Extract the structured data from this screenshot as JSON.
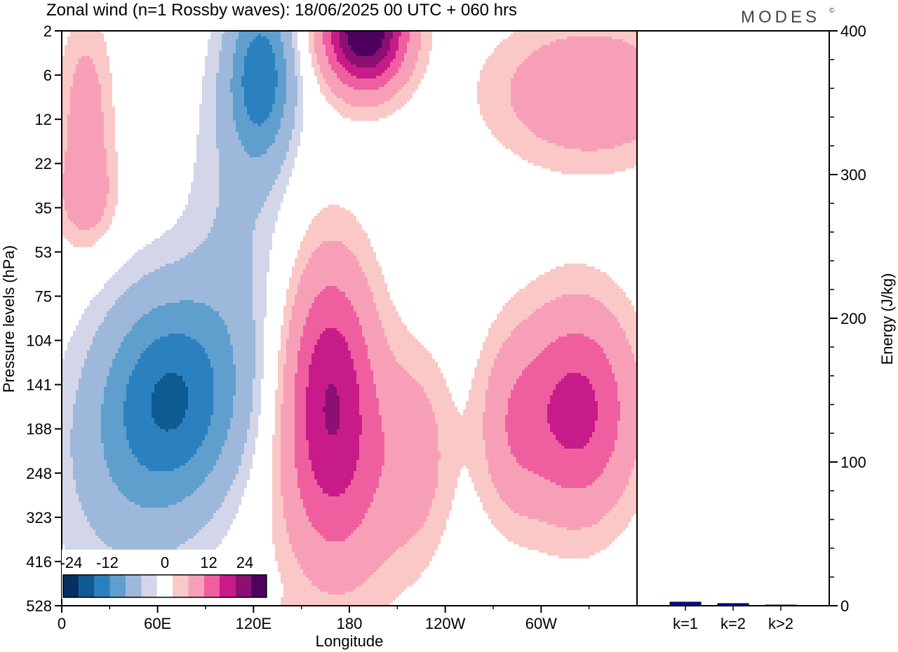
{
  "title": "Zonal wind (n=1 Rossby waves):  18/06/2025  00 UTC  + 060 hrs",
  "brand": "MODES",
  "brand_mark": "©",
  "colors": {
    "levels": [
      "#053061",
      "#0e5a92",
      "#2b81bf",
      "#5f9fcd",
      "#9db8da",
      "#d3d6e8",
      "#ffffff",
      "#fac8c6",
      "#f89fb8",
      "#ef5fa0",
      "#c81b8a",
      "#8c0f73",
      "#4d0060"
    ],
    "bar": "#0a0a96"
  },
  "chart_data": [
    {
      "type": "heatmap",
      "title": "Zonal wind (n=1 Rossby waves):  18/06/2025  00 UTC  + 060 hrs",
      "xlabel": "Longitude",
      "ylabel": "Pressure levels (hPa)",
      "x_ticks": [
        "0",
        "60E",
        "120E",
        "180",
        "120W",
        "60W"
      ],
      "x_tick_values": [
        0,
        60,
        120,
        180,
        240,
        300
      ],
      "xlim": [
        0,
        360
      ],
      "y_ticks": [
        "2",
        "6",
        "12",
        "22",
        "35",
        "53",
        "75",
        "104",
        "141",
        "188",
        "248",
        "323",
        "416",
        "528"
      ],
      "y_scale": "log (pressure, increasing downward)",
      "colorbar": {
        "tick_labels": [
          "-24",
          "-12",
          "0",
          "12",
          "24"
        ],
        "tick_values": [
          -24,
          -12,
          0,
          12,
          24
        ],
        "level_bounds": [
          -30,
          -25,
          -20,
          -15,
          -10,
          -5,
          0,
          5,
          10,
          15,
          20,
          25,
          30
        ],
        "placement": "bottom-left inside plot"
      },
      "features": [
        {
          "sign": "negative",
          "peak_ms": -16,
          "lon": 70,
          "hPa": 135
        },
        {
          "sign": "negative",
          "peak_ms": -16,
          "lon": 125,
          "hPa": 8
        },
        {
          "sign": "positive",
          "peak_ms": 16,
          "lon": 168,
          "hPa": 125
        },
        {
          "sign": "positive",
          "peak_ms": 16,
          "lon": 322,
          "hPa": 150
        },
        {
          "sign": "positive",
          "peak_ms": 30,
          "lon": 190,
          "hPa": 2
        },
        {
          "sign": "positive",
          "peak_ms": 10,
          "lon": 330,
          "hPa": 8
        }
      ],
      "grid": false
    },
    {
      "type": "bar",
      "categories": [
        "k=1",
        "k=2",
        "k>2"
      ],
      "values": [
        2.5,
        1.5,
        0.5
      ],
      "ylabel": "Energy (J/kg)",
      "ylim": [
        0,
        400
      ],
      "y_ticks": [
        "0",
        "100",
        "200",
        "300",
        "400"
      ],
      "y_tick_values": [
        0,
        100,
        200,
        300,
        400
      ],
      "grid": false
    }
  ]
}
